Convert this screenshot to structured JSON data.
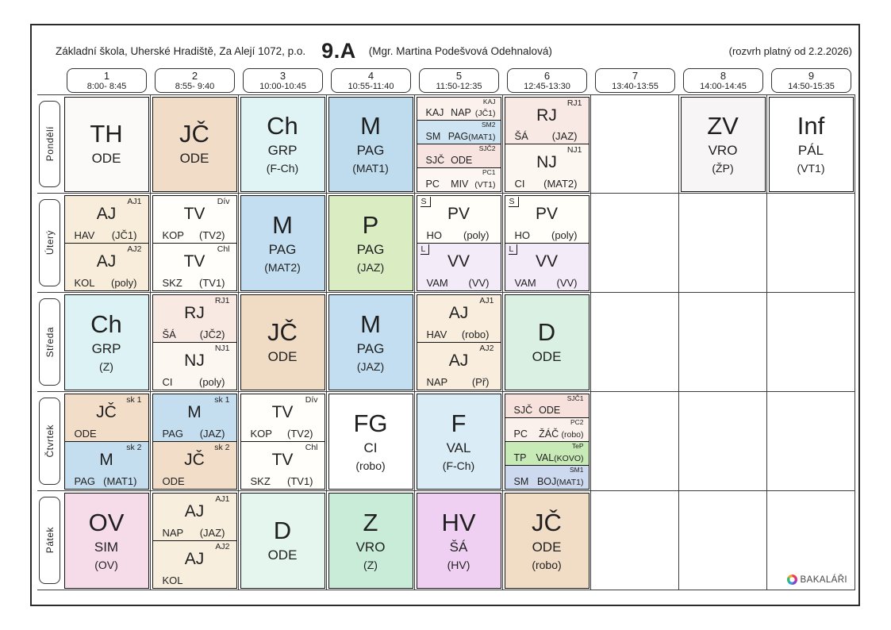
{
  "title": {
    "school": "Základní škola, Uherské Hradiště, Za Alejí 1072, p.o.",
    "class_name": "9.A",
    "class_teacher": "(Mgr. Martina Podešvová Odehnalová)",
    "validity": "(rozvrh platný od 2.2.2026)"
  },
  "brand": {
    "label": "BAKALÁŘI",
    "icon": "bakalari-hex-icon"
  },
  "colors": {
    "grid_line": "#3c3c3c",
    "lesson_border": "#141414"
  },
  "periods": [
    {
      "num": "1",
      "time": "8:00- 8:45"
    },
    {
      "num": "2",
      "time": "8:55- 9:40"
    },
    {
      "num": "3",
      "time": "10:00-10:45"
    },
    {
      "num": "4",
      "time": "10:55-11:40"
    },
    {
      "num": "5",
      "time": "11:50-12:35"
    },
    {
      "num": "6",
      "time": "12:45-13:30"
    },
    {
      "num": "7",
      "time": "13:40-13:55"
    },
    {
      "num": "8",
      "time": "14:00-14:45"
    },
    {
      "num": "9",
      "time": "14:50-15:35"
    }
  ],
  "days": [
    {
      "label": "Pondělí",
      "cells": [
        {
          "lessons": [
            {
              "group": "",
              "flag": "",
              "subject": "TH",
              "teacher": "ODE",
              "room": "",
              "bg": "#fcf9f9"
            }
          ]
        },
        {
          "lessons": [
            {
              "group": "",
              "flag": "",
              "subject": "JČ",
              "teacher": "ODE",
              "room": "",
              "bg": "#f1dcc7"
            }
          ]
        },
        {
          "lessons": [
            {
              "group": "",
              "flag": "",
              "subject": "Ch",
              "teacher": "GRP",
              "room": "(F-Ch)",
              "bg": "#e0f3f5"
            }
          ]
        },
        {
          "lessons": [
            {
              "group": "",
              "flag": "",
              "subject": "M",
              "teacher": "PAG",
              "room": "(MAT1)",
              "bg": "#bedcee"
            }
          ]
        },
        {
          "lessons": [
            {
              "group": "KAJ",
              "flag": "",
              "subject": "KAJ",
              "teacher": "NAP",
              "room": "(JČ1)",
              "bg": "#fbf2ee"
            },
            {
              "group": "SM2",
              "flag": "",
              "subject": "SM",
              "teacher": "PAG",
              "room": "(MAT1)",
              "bg": "#cfe4f3"
            },
            {
              "group": "SJČ2",
              "flag": "",
              "subject": "SJČ",
              "teacher": "ODE",
              "room": "",
              "bg": "#f7e4e0"
            },
            {
              "group": "PC1",
              "flag": "",
              "subject": "PC",
              "teacher": "MIV",
              "room": "(VT1)",
              "bg": "#fcf7f3"
            }
          ]
        },
        {
          "lessons": [
            {
              "group": "RJ1",
              "flag": "",
              "subject": "RJ",
              "teacher": "ŠÁ",
              "room": "(JAZ)",
              "bg": "#f8e9e4"
            },
            {
              "group": "NJ1",
              "flag": "",
              "subject": "NJ",
              "teacher": "CI",
              "room": "(MAT2)",
              "bg": "#fdf7f2"
            }
          ]
        },
        null,
        {
          "lessons": [
            {
              "group": "",
              "flag": "",
              "subject": "ZV",
              "teacher": "VRO",
              "room": "(ŽP)",
              "bg": "#f7f5f5"
            }
          ]
        },
        {
          "lessons": [
            {
              "group": "",
              "flag": "",
              "subject": "Inf",
              "teacher": "PÁL",
              "room": "(VT1)",
              "bg": "#ffffff"
            }
          ]
        }
      ]
    },
    {
      "label": "Úterý",
      "cells": [
        {
          "lessons": [
            {
              "group": "AJ1",
              "flag": "",
              "subject": "AJ",
              "teacher": "HAV",
              "room": "(JČ1)",
              "bg": "#f8edda"
            },
            {
              "group": "AJ2",
              "flag": "",
              "subject": "AJ",
              "teacher": "KOL",
              "room": "(poly)",
              "bg": "#f8edda"
            }
          ]
        },
        {
          "lessons": [
            {
              "group": "Dív",
              "flag": "",
              "subject": "TV",
              "teacher": "KOP",
              "room": "(TV2)",
              "bg": "#fffefb"
            },
            {
              "group": "Chl",
              "flag": "",
              "subject": "TV",
              "teacher": "SKZ",
              "room": "(TV1)",
              "bg": "#fffefb"
            }
          ]
        },
        {
          "lessons": [
            {
              "group": "",
              "flag": "",
              "subject": "M",
              "teacher": "PAG",
              "room": "(MAT2)",
              "bg": "#c3def0"
            }
          ]
        },
        {
          "lessons": [
            {
              "group": "",
              "flag": "",
              "subject": "P",
              "teacher": "PAG",
              "room": "(JAZ)",
              "bg": "#d9ecc2"
            }
          ]
        },
        {
          "lessons": [
            {
              "group": "",
              "flag": "S",
              "subject": "PV",
              "teacher": "HO",
              "room": "(poly)",
              "bg": "#fffef8"
            },
            {
              "group": "",
              "flag": "L",
              "subject": "VV",
              "teacher": "VAM",
              "room": "(VV)",
              "bg": "#f4ebf9"
            }
          ]
        },
        {
          "lessons": [
            {
              "group": "",
              "flag": "S",
              "subject": "PV",
              "teacher": "HO",
              "room": "(poly)",
              "bg": "#fffef8"
            },
            {
              "group": "",
              "flag": "L",
              "subject": "VV",
              "teacher": "VAM",
              "room": "(VV)",
              "bg": "#f4ebf9"
            }
          ]
        },
        null,
        null,
        null
      ]
    },
    {
      "label": "Středa",
      "cells": [
        {
          "lessons": [
            {
              "group": "",
              "flag": "",
              "subject": "Ch",
              "teacher": "GRP",
              "room": "(Z)",
              "bg": "#ddf2f4"
            }
          ]
        },
        {
          "lessons": [
            {
              "group": "RJ1",
              "flag": "",
              "subject": "RJ",
              "teacher": "ŠÁ",
              "room": "(JČ2)",
              "bg": "#f8e9e3"
            },
            {
              "group": "NJ1",
              "flag": "",
              "subject": "NJ",
              "teacher": "CI",
              "room": "(poly)",
              "bg": "#fdf7f2"
            }
          ]
        },
        {
          "lessons": [
            {
              "group": "",
              "flag": "",
              "subject": "JČ",
              "teacher": "ODE",
              "room": "",
              "bg": "#f0dbc5"
            }
          ]
        },
        {
          "lessons": [
            {
              "group": "",
              "flag": "",
              "subject": "M",
              "teacher": "PAG",
              "room": "(JAZ)",
              "bg": "#c3def0"
            }
          ]
        },
        {
          "lessons": [
            {
              "group": "AJ1",
              "flag": "",
              "subject": "AJ",
              "teacher": "HAV",
              "room": "(robo)",
              "bg": "#f9eedd"
            },
            {
              "group": "AJ2",
              "flag": "",
              "subject": "AJ",
              "teacher": "NAP",
              "room": "(Př)",
              "bg": "#f9eedd"
            }
          ]
        },
        {
          "lessons": [
            {
              "group": "",
              "flag": "",
              "subject": "D",
              "teacher": "ODE",
              "room": "",
              "bg": "#d9f0e3"
            }
          ]
        },
        null,
        null,
        null
      ]
    },
    {
      "label": "Čtvrtek",
      "cells": [
        {
          "lessons": [
            {
              "group": "sk 1",
              "flag": "",
              "subject": "JČ",
              "teacher": "ODE",
              "room": "",
              "bg": "#f1ddc8"
            },
            {
              "group": "sk 2",
              "flag": "",
              "subject": "M",
              "teacher": "PAG",
              "room": "(MAT1)",
              "bg": "#c4def0"
            }
          ]
        },
        {
          "lessons": [
            {
              "group": "sk 1",
              "flag": "",
              "subject": "M",
              "teacher": "PAG",
              "room": "(JAZ)",
              "bg": "#c4def0"
            },
            {
              "group": "sk 2",
              "flag": "",
              "subject": "JČ",
              "teacher": "ODE",
              "room": "",
              "bg": "#f1ddc8"
            }
          ]
        },
        {
          "lessons": [
            {
              "group": "Dív",
              "flag": "",
              "subject": "TV",
              "teacher": "KOP",
              "room": "(TV2)",
              "bg": "#fffefb"
            },
            {
              "group": "Chl",
              "flag": "",
              "subject": "TV",
              "teacher": "SKZ",
              "room": "(TV1)",
              "bg": "#fffefb"
            }
          ]
        },
        {
          "lessons": [
            {
              "group": "",
              "flag": "",
              "subject": "FG",
              "teacher": "CI",
              "room": "(robo)",
              "bg": "#ffffff"
            }
          ]
        },
        {
          "lessons": [
            {
              "group": "",
              "flag": "",
              "subject": "F",
              "teacher": "VAL",
              "room": "(F-Ch)",
              "bg": "#daecf6"
            }
          ]
        },
        {
          "lessons": [
            {
              "group": "SJČ1",
              "flag": "",
              "subject": "SJČ",
              "teacher": "ODE",
              "room": "",
              "bg": "#f6e1dc"
            },
            {
              "group": "PC2",
              "flag": "",
              "subject": "PC",
              "teacher": "ŽÁČ",
              "room": "(robo)",
              "bg": "#fbf1ec"
            },
            {
              "group": "TeP",
              "flag": "",
              "subject": "TP",
              "teacher": "VAL",
              "room": "(KOVO)",
              "bg": "#c8eab7"
            },
            {
              "group": "SM1",
              "flag": "",
              "subject": "SM",
              "teacher": "BOJ",
              "room": "(MAT1)",
              "bg": "#cdd9ef"
            }
          ]
        },
        null,
        null,
        null
      ]
    },
    {
      "label": "Pátek",
      "cells": [
        {
          "lessons": [
            {
              "group": "",
              "flag": "",
              "subject": "OV",
              "teacher": "SIM",
              "room": "(OV)",
              "bg": "#f6dbe9"
            }
          ]
        },
        {
          "lessons": [
            {
              "group": "AJ1",
              "flag": "",
              "subject": "AJ",
              "teacher": "NAP",
              "room": "(JAZ)",
              "bg": "#f8eedd"
            },
            {
              "group": "AJ2",
              "flag": "",
              "subject": "AJ",
              "teacher": "KOL",
              "room": "",
              "bg": "#f8eedd"
            }
          ]
        },
        {
          "lessons": [
            {
              "group": "",
              "flag": "",
              "subject": "D",
              "teacher": "ODE",
              "room": "",
              "bg": "#e5f6ee"
            }
          ]
        },
        {
          "lessons": [
            {
              "group": "",
              "flag": "",
              "subject": "Z",
              "teacher": "VRO",
              "room": "(Z)",
              "bg": "#c9ecd9"
            }
          ]
        },
        {
          "lessons": [
            {
              "group": "",
              "flag": "",
              "subject": "HV",
              "teacher": "ŠÁ",
              "room": "(HV)",
              "bg": "#efd0f3"
            }
          ]
        },
        {
          "lessons": [
            {
              "group": "",
              "flag": "",
              "subject": "JČ",
              "teacher": "ODE",
              "room": "(robo)",
              "bg": "#f1dcc6"
            }
          ]
        },
        null,
        null,
        null
      ]
    }
  ]
}
